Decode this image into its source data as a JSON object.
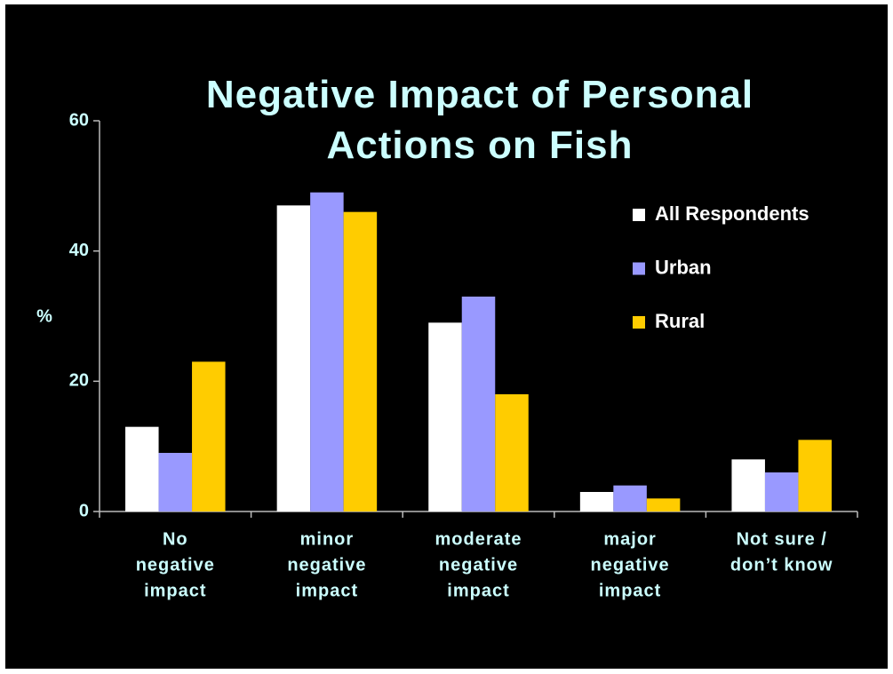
{
  "chart_data": {
    "type": "bar",
    "title": "Negative Impact of Personal Actions on Fish",
    "ylabel": "%",
    "categories": [
      [
        "No",
        "negative",
        "impact"
      ],
      [
        "minor",
        "negative",
        "impact"
      ],
      [
        "moderate",
        "negative",
        "impact"
      ],
      [
        "major",
        "negative",
        "impact"
      ],
      [
        "Not sure /",
        "don’t know"
      ]
    ],
    "series": [
      {
        "name": "All Respondents",
        "color": "#ffffff",
        "values": [
          13,
          47,
          29,
          3,
          8
        ]
      },
      {
        "name": "Urban",
        "color": "#9999ff",
        "values": [
          9,
          49,
          33,
          4,
          6
        ]
      },
      {
        "name": "Rural",
        "color": "#ffcc00",
        "values": [
          23,
          46,
          18,
          2,
          11
        ]
      }
    ],
    "ylim": [
      0,
      60
    ],
    "yticks": [
      0,
      20,
      40,
      60
    ],
    "grid": false,
    "legend": "right"
  }
}
